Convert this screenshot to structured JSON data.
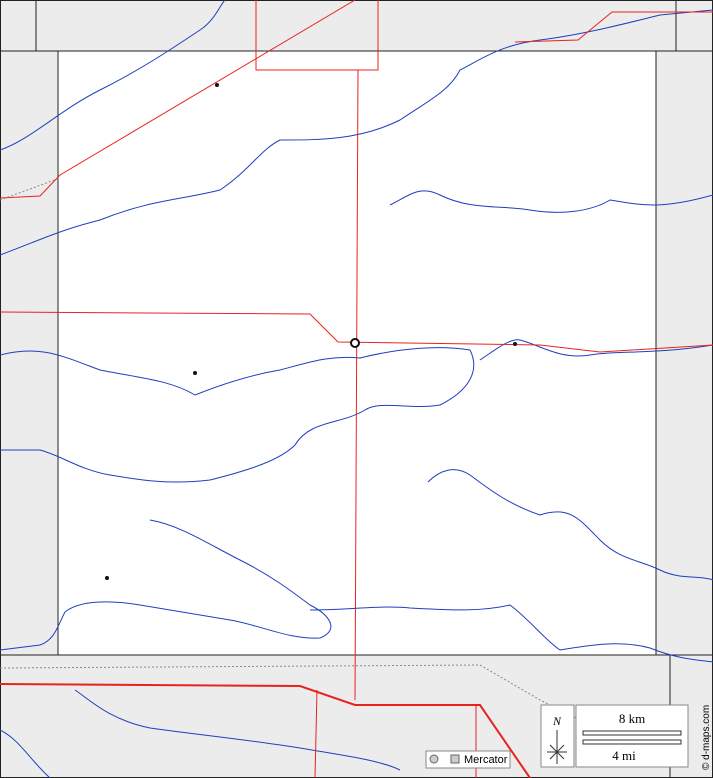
{
  "legend": {
    "north": "N",
    "scale_km": "8 km",
    "scale_mi": "4 mi",
    "projection": "Mercator"
  },
  "credit": "© d-maps.com"
}
